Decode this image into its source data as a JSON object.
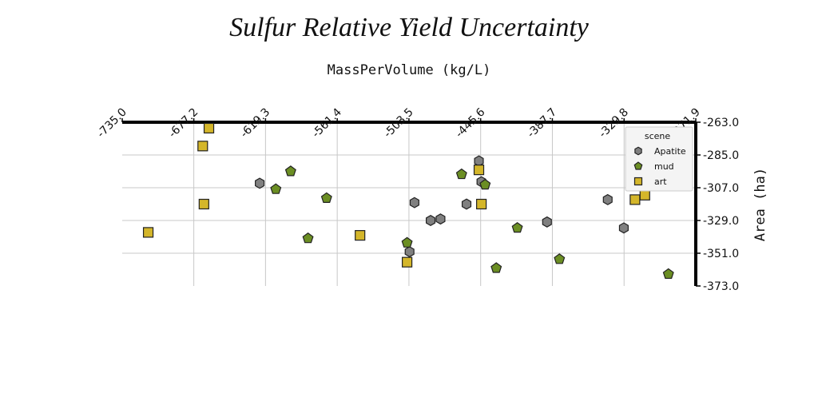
{
  "chart_data": {
    "type": "scatter",
    "title": "Sulfur Relative Yield Uncertainty",
    "xlabel": "MassPerVolume (kg/L)",
    "ylabel": "Area (ha)",
    "x_axis_position": "top",
    "y_axis_position": "right",
    "xlim": [
      -735.0,
      -271.9
    ],
    "ylim": [
      -373.0,
      -263.0
    ],
    "x_ticks": [
      "-735.0",
      "-677.2",
      "-619.3",
      "-561.4",
      "-503.5",
      "-445.6",
      "-387.7",
      "-329.8",
      "-271.9"
    ],
    "y_ticks": [
      "-263.0",
      "-285.0",
      "-307.0",
      "-329.0",
      "-351.0",
      "-373.0"
    ],
    "grid": true,
    "legend": {
      "title": "scene",
      "position": "top-right"
    },
    "series": [
      {
        "name": "Apatite",
        "marker": "hexagon",
        "color": "#808080",
        "points": [
          {
            "x": -624,
            "y": -304
          },
          {
            "x": -499,
            "y": -317
          },
          {
            "x": -486,
            "y": -329
          },
          {
            "x": -478,
            "y": -328
          },
          {
            "x": -457,
            "y": -318
          },
          {
            "x": -447,
            "y": -289
          },
          {
            "x": -445,
            "y": -303
          },
          {
            "x": -392,
            "y": -330
          },
          {
            "x": -343,
            "y": -315
          },
          {
            "x": -330,
            "y": -334
          },
          {
            "x": -503,
            "y": -350
          }
        ]
      },
      {
        "name": "mud",
        "marker": "pentagon",
        "color": "#6b8e23",
        "points": [
          {
            "x": -599,
            "y": -296
          },
          {
            "x": -611,
            "y": -308
          },
          {
            "x": -570,
            "y": -314
          },
          {
            "x": -585,
            "y": -341
          },
          {
            "x": -505,
            "y": -344
          },
          {
            "x": -461,
            "y": -298
          },
          {
            "x": -442,
            "y": -305
          },
          {
            "x": -416,
            "y": -334
          },
          {
            "x": -433,
            "y": -361
          },
          {
            "x": -382,
            "y": -355
          },
          {
            "x": -294,
            "y": -365
          }
        ]
      },
      {
        "name": "art",
        "marker": "square",
        "color": "#d4b62a",
        "points": [
          {
            "x": -665,
            "y": -267
          },
          {
            "x": -670,
            "y": -279
          },
          {
            "x": -669,
            "y": -318
          },
          {
            "x": -714,
            "y": -337
          },
          {
            "x": -543,
            "y": -339
          },
          {
            "x": -505,
            "y": -357
          },
          {
            "x": -447,
            "y": -295
          },
          {
            "x": -445,
            "y": -318
          },
          {
            "x": -321,
            "y": -315
          },
          {
            "x": -313,
            "y": -312
          }
        ]
      }
    ]
  }
}
